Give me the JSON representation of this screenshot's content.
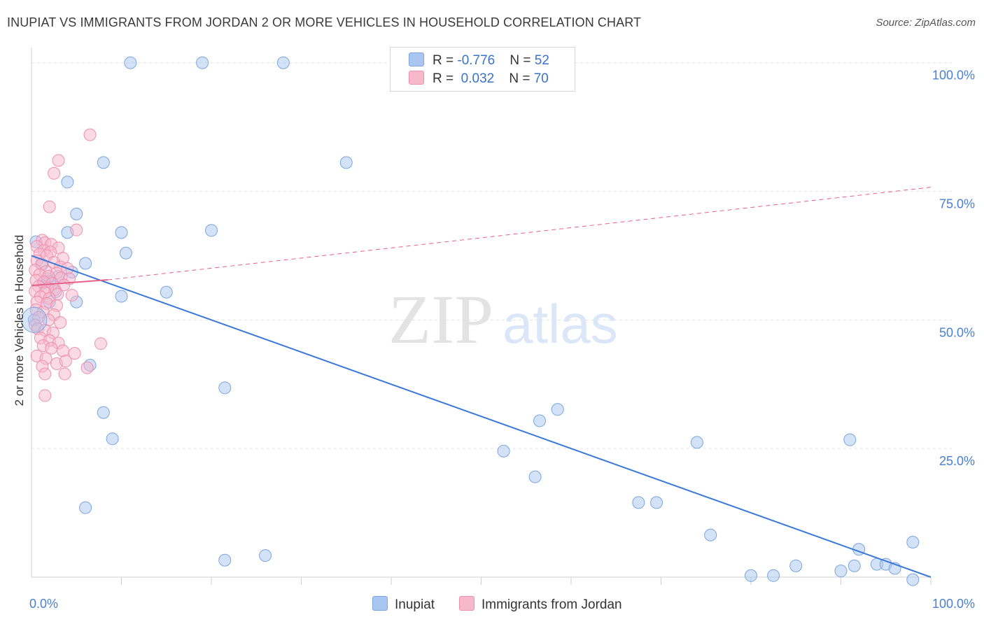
{
  "title": "INUPIAT VS IMMIGRANTS FROM JORDAN 2 OR MORE VEHICLES IN HOUSEHOLD CORRELATION CHART",
  "source": "Source: ZipAtlas.com",
  "watermark": {
    "zip": "ZIP",
    "atlas": "atlas"
  },
  "legend": {
    "rows": [
      {
        "r_label": "R = ",
        "r_value": "-0.776",
        "n_label": "N = ",
        "n_value": "52",
        "color": "#a9c6f0"
      },
      {
        "r_label": "R = ",
        "r_value": "0.032",
        "n_label": "N = ",
        "n_value": "70",
        "color": "#f6b8cb"
      }
    ]
  },
  "chart_data": {
    "type": "scatter",
    "title": "INUPIAT VS IMMIGRANTS FROM JORDAN 2 OR MORE VEHICLES IN HOUSEHOLD CORRELATION CHART",
    "xlabel": "",
    "ylabel": "2 or more Vehicles in Household",
    "xlim": [
      0,
      100
    ],
    "ylim": [
      0,
      102
    ],
    "x_tick_labels": [
      "0.0%",
      "100.0%"
    ],
    "y_tick_labels": [
      "25.0%",
      "50.0%",
      "75.0%",
      "100.0%"
    ],
    "y_tick_values": [
      25,
      50,
      75,
      100
    ],
    "grid": "horizontal dashed",
    "legend_position": "bottom-center",
    "series": [
      {
        "name": "Inupiat",
        "color": "#a9c6f0",
        "stroke": "#7aa5e0",
        "points": [
          [
            11,
            100
          ],
          [
            19,
            100
          ],
          [
            28,
            100
          ],
          [
            8,
            80.6
          ],
          [
            35,
            80.6
          ],
          [
            4,
            76.8
          ],
          [
            5,
            70.6
          ],
          [
            4,
            67
          ],
          [
            10,
            67
          ],
          [
            20,
            67.4
          ],
          [
            0.5,
            65.2
          ],
          [
            10.5,
            63
          ],
          [
            6,
            61
          ],
          [
            1.2,
            60.8
          ],
          [
            4.5,
            59.3
          ],
          [
            3,
            58.5
          ],
          [
            2,
            57.5
          ],
          [
            1.3,
            57.2
          ],
          [
            1.8,
            58
          ],
          [
            2.7,
            55.5
          ],
          [
            10,
            54.6
          ],
          [
            15,
            55.4
          ],
          [
            2,
            53.5
          ],
          [
            5,
            53.5
          ],
          [
            0.3,
            50
          ],
          [
            6.5,
            41.2
          ],
          [
            21.5,
            36.8
          ],
          [
            8,
            32
          ],
          [
            58.5,
            32.6
          ],
          [
            56.5,
            30.4
          ],
          [
            9,
            26.9
          ],
          [
            52.5,
            24.5
          ],
          [
            74,
            26.2
          ],
          [
            91,
            26.7
          ],
          [
            56,
            19.5
          ],
          [
            67.5,
            14.5
          ],
          [
            69.5,
            14.5
          ],
          [
            6,
            13.5
          ],
          [
            75.5,
            8.2
          ],
          [
            92,
            5.4
          ],
          [
            98,
            6.8
          ],
          [
            21.5,
            3.3
          ],
          [
            26,
            4.2
          ],
          [
            80,
            0.3
          ],
          [
            82.5,
            0.3
          ],
          [
            85,
            2.2
          ],
          [
            90,
            1.2
          ],
          [
            91.5,
            2.2
          ],
          [
            94,
            2.5
          ],
          [
            95,
            2.5
          ],
          [
            96,
            1.7
          ],
          [
            98,
            -0.5
          ]
        ]
      },
      {
        "name": "Immigrants from Jordan",
        "color": "#f6b8cb",
        "stroke": "#ef8fae",
        "points": [
          [
            6.5,
            86
          ],
          [
            3,
            81
          ],
          [
            2.5,
            78.5
          ],
          [
            2,
            72
          ],
          [
            5,
            67.5
          ],
          [
            1.2,
            65.5
          ],
          [
            1.5,
            65
          ],
          [
            2.2,
            64.7
          ],
          [
            0.6,
            64.3
          ],
          [
            3,
            64
          ],
          [
            1.4,
            63.5
          ],
          [
            2.1,
            63.2
          ],
          [
            0.9,
            62.8
          ],
          [
            1.7,
            62.5
          ],
          [
            3.5,
            62
          ],
          [
            0.6,
            61.5
          ],
          [
            2.5,
            61.2
          ],
          [
            1.1,
            60.8
          ],
          [
            3.2,
            60.3
          ],
          [
            4,
            60
          ],
          [
            0.4,
            59.7
          ],
          [
            1.6,
            59.4
          ],
          [
            2.8,
            59.1
          ],
          [
            0.9,
            58.8
          ],
          [
            1.9,
            58.5
          ],
          [
            3.3,
            58.2
          ],
          [
            4.2,
            58
          ],
          [
            0.5,
            57.7
          ],
          [
            1.4,
            57.4
          ],
          [
            2.3,
            57.1
          ],
          [
            3.6,
            56.8
          ],
          [
            0.8,
            56.5
          ],
          [
            1.8,
            56.2
          ],
          [
            2.6,
            55.9
          ],
          [
            0.4,
            55.6
          ],
          [
            1.5,
            55.3
          ],
          [
            2.9,
            55
          ],
          [
            4.5,
            54.8
          ],
          [
            1,
            54.5
          ],
          [
            2,
            54.2
          ],
          [
            0.6,
            53.5
          ],
          [
            1.7,
            53.2
          ],
          [
            2.8,
            52.8
          ],
          [
            0.5,
            52
          ],
          [
            1.3,
            51.5
          ],
          [
            2.5,
            51
          ],
          [
            0.8,
            50.5
          ],
          [
            1.9,
            50
          ],
          [
            3.2,
            49.5
          ],
          [
            0.4,
            49
          ],
          [
            0.7,
            48.3
          ],
          [
            1.5,
            48
          ],
          [
            2.4,
            47.5
          ],
          [
            1,
            46.5
          ],
          [
            2,
            46
          ],
          [
            3,
            45.5
          ],
          [
            1.3,
            45
          ],
          [
            2.2,
            44.5
          ],
          [
            3.5,
            44
          ],
          [
            4.8,
            43.5
          ],
          [
            0.6,
            43
          ],
          [
            1.6,
            42.5
          ],
          [
            2.8,
            41.5
          ],
          [
            3.8,
            42
          ],
          [
            1.2,
            41
          ],
          [
            7.7,
            45.4
          ],
          [
            6.2,
            40.7
          ],
          [
            1.5,
            39.5
          ],
          [
            3.7,
            39.5
          ],
          [
            1.5,
            35.3
          ]
        ]
      }
    ],
    "trend_lines": [
      {
        "series": "Inupiat",
        "x": [
          0,
          100
        ],
        "y": [
          62.5,
          0
        ],
        "style": "solid"
      },
      {
        "series": "Immigrants from Jordan",
        "x": [
          0,
          8.5
        ],
        "y": [
          56.7,
          57.8
        ],
        "style": "solid"
      },
      {
        "series": "Immigrants from Jordan",
        "x": [
          8.5,
          100
        ],
        "y": [
          57.8,
          75.8
        ],
        "style": "dashed"
      }
    ]
  }
}
